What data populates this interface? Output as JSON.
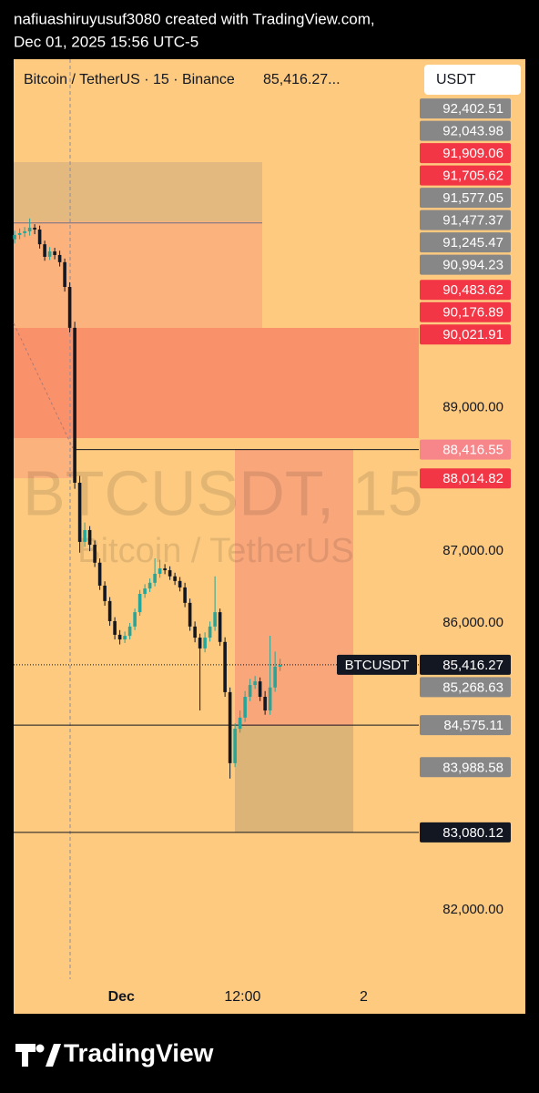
{
  "header": {
    "line1": "nafiuashiruyusuf3080 created with TradingView.com,",
    "line2": "Dec 01, 2025 15:56 UTC-5"
  },
  "chart_data": {
    "type": "candlestick",
    "legend": "Bitcoin / TetherUS · 15 · Binance",
    "legend_price": "85,416.27...",
    "currency": "USDT",
    "watermark": "BTCUSDT, 15",
    "watermark_sub": "Bitcoin / TetherUS",
    "open": [
      91350,
      91410,
      91435,
      91460,
      91510,
      91485,
      91280,
      91105,
      91180,
      91130,
      91030,
      90685,
      90115,
      87955,
      87130,
      87295,
      87090,
      86840,
      86520,
      86305,
      86025,
      85835,
      85770,
      85820,
      85950,
      86150,
      86405,
      86480,
      86560,
      86685,
      86760,
      86735,
      86650,
      86585,
      86495,
      86280,
      85950,
      85795,
      85645,
      85795,
      85950,
      86150,
      85735,
      85035,
      84045,
      84525,
      84680,
      84970,
      85135,
      85185,
      84970,
      84780,
      85100,
      85390
    ],
    "high": [
      91470,
      91500,
      91520,
      91640,
      91560,
      91540,
      91330,
      91240,
      91230,
      91190,
      91080,
      90750,
      90200,
      88050,
      87400,
      87350,
      87150,
      86900,
      86580,
      86360,
      86080,
      85900,
      85880,
      86000,
      86200,
      86460,
      86540,
      86620,
      86900,
      86880,
      86820,
      86790,
      86700,
      86640,
      86560,
      86340,
      86020,
      85850,
      85870,
      86020,
      86650,
      86200,
      85800,
      85100,
      84600,
      84780,
      85050,
      85220,
      85260,
      85240,
      85050,
      85820,
      85600,
      85500
    ],
    "low": [
      91290,
      91350,
      91380,
      91400,
      91420,
      91220,
      91050,
      91060,
      91070,
      90970,
      90620,
      90050,
      87870,
      86980,
      87060,
      87000,
      86780,
      86460,
      86240,
      85960,
      85770,
      85700,
      85720,
      85770,
      85900,
      86100,
      86350,
      86430,
      86510,
      86630,
      86680,
      86600,
      86530,
      86440,
      86220,
      85890,
      85730,
      84780,
      85590,
      85740,
      85890,
      85680,
      84970,
      83830,
      83990,
      84470,
      84620,
      84910,
      85080,
      84910,
      84720,
      84720,
      85040,
      85330
    ],
    "close": [
      91410,
      91435,
      91460,
      91510,
      91485,
      91280,
      91105,
      91180,
      91130,
      91030,
      90685,
      90115,
      87955,
      87130,
      87295,
      87090,
      86840,
      86520,
      86305,
      86025,
      85835,
      85770,
      85820,
      85950,
      86150,
      86405,
      86480,
      86560,
      86685,
      86760,
      86735,
      86650,
      86585,
      86495,
      86280,
      85950,
      85795,
      85645,
      85795,
      85950,
      86150,
      85735,
      85035,
      84045,
      84525,
      84680,
      84970,
      85135,
      85185,
      84970,
      84780,
      85100,
      85390,
      85415
    ],
    "up_color": "#26a69a",
    "down_color": "#131722",
    "xlim": [
      -0.2,
      80.7
    ],
    "xticks": [
      {
        "value": 21.3,
        "label": "Dec"
      },
      {
        "value": 45.5,
        "label": "12:00"
      },
      {
        "value": 69.7,
        "label": "2"
      }
    ],
    "ylim": [
      80970,
      93860
    ],
    "yticks": [
      {
        "value": 82000,
        "label": "82,000.00"
      },
      {
        "value": 86000,
        "label": "86,000.00"
      },
      {
        "value": 87000,
        "label": "87,000.00"
      },
      {
        "value": 89000,
        "label": "89,000.00"
      }
    ],
    "price_labels": [
      {
        "value": 92402.51,
        "label": "92,402.51",
        "color": "#878787"
      },
      {
        "value": 92043.98,
        "label": "92,043.98",
        "color": "#878787"
      },
      {
        "value": 91909.06,
        "label": "91,909.06",
        "color": "#f23645"
      },
      {
        "value": 91705.62,
        "label": "91,705.62",
        "color": "#f23645"
      },
      {
        "value": 91577.05,
        "label": "91,577.05",
        "color": "#878787"
      },
      {
        "value": 91477.37,
        "label": "91,477.37",
        "color": "#878787"
      },
      {
        "value": 91245.47,
        "label": "91,245.47",
        "color": "#878787"
      },
      {
        "value": 90994.23,
        "label": "90,994.23",
        "color": "#878787"
      },
      {
        "value": 90483.62,
        "label": "90,483.62",
        "color": "#f23645"
      },
      {
        "value": 90176.89,
        "label": "90,176.89",
        "color": "#f23645"
      },
      {
        "value": 90021.91,
        "label": "90,021.91",
        "color": "#f23645"
      },
      {
        "value": 88416.55,
        "label": "88,416.55",
        "color": "#f7868a"
      },
      {
        "value": 88014.82,
        "label": "88,014.82",
        "color": "#f23645"
      },
      {
        "value": 85268.63,
        "label": "85,268.63",
        "color": "#878787"
      },
      {
        "value": 84575.11,
        "label": "84,575.11",
        "color": "#878787"
      },
      {
        "value": 83988.58,
        "label": "83,988.58",
        "color": "#878787"
      },
      {
        "value": 83080.12,
        "label": "83,080.12",
        "color": "#131722"
      }
    ],
    "last_price": {
      "value": 85416.27,
      "name": "BTCUSDT",
      "label": "85,416.27",
      "color": "#131722"
    }
  },
  "footer": {
    "brand": "TradingView"
  }
}
